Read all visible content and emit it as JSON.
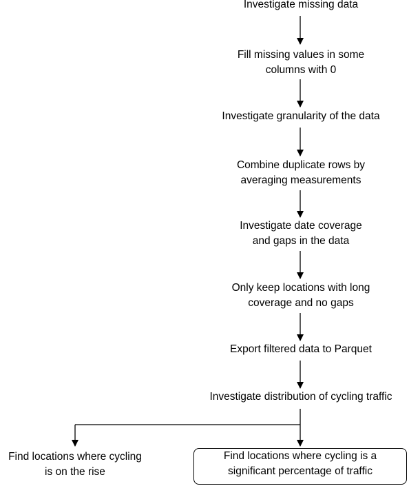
{
  "steps": [
    {
      "lines": [
        "Investigate missing data"
      ]
    },
    {
      "lines": [
        "Fill missing values in some",
        "columns with 0"
      ]
    },
    {
      "lines": [
        "Investigate granularity of the data"
      ]
    },
    {
      "lines": [
        "Combine duplicate rows by",
        "averaging measurements"
      ]
    },
    {
      "lines": [
        "Investigate date coverage",
        "and gaps in the data"
      ]
    },
    {
      "lines": [
        "Only keep locations with long",
        "coverage and no gaps"
      ]
    },
    {
      "lines": [
        "Export filtered data to Parquet"
      ]
    },
    {
      "lines": [
        "Investigate distribution of cycling traffic"
      ]
    }
  ],
  "branches": [
    {
      "lines": [
        "Find locations where cycling",
        "is on the rise"
      ],
      "highlighted": false
    },
    {
      "lines": [
        "Find locations where cycling is a",
        "significant percentage of traffic"
      ],
      "highlighted": true
    }
  ],
  "colors": {
    "stroke": "#000000",
    "text": "#000000",
    "background": "#ffffff"
  }
}
